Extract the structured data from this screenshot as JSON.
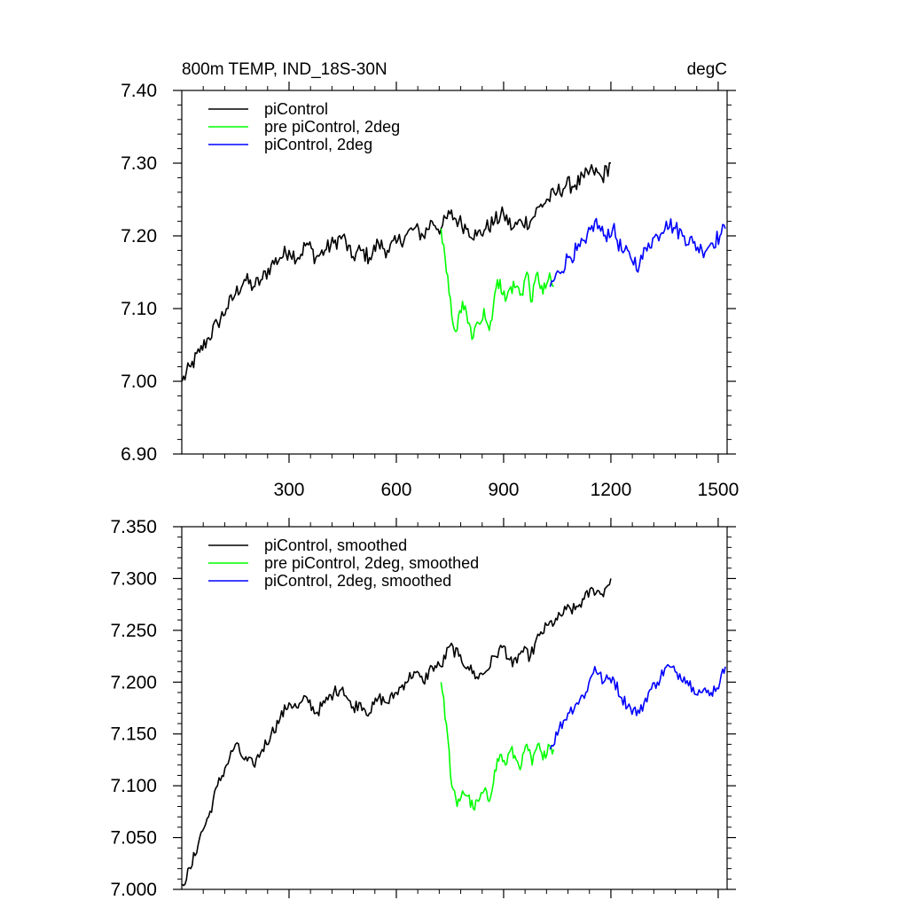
{
  "chart_data": [
    {
      "type": "line",
      "title": "800m TEMP, IND_18S-30N",
      "units": "degC",
      "xlabel": "",
      "ylabel": "",
      "xlim": [
        0,
        1525
      ],
      "ylim": [
        6.9,
        7.4
      ],
      "xticks": [
        300,
        600,
        900,
        1200,
        1500
      ],
      "yticks": [
        6.9,
        7.0,
        7.1,
        7.2,
        7.3,
        7.4
      ],
      "ytick_labels": [
        "6.90",
        "7.00",
        "7.10",
        "7.20",
        "7.30",
        "7.40"
      ],
      "legend_position": "top-left",
      "series": [
        {
          "name": "piControl",
          "color": "#000000",
          "x": [
            1,
            25,
            50,
            75,
            100,
            125,
            150,
            175,
            200,
            225,
            250,
            275,
            300,
            325,
            350,
            375,
            400,
            425,
            450,
            475,
            500,
            525,
            550,
            575,
            600,
            625,
            650,
            675,
            700,
            725,
            750,
            775,
            800,
            825,
            850,
            875,
            900,
            925,
            950,
            975,
            1000,
            1025,
            1050,
            1075,
            1100,
            1125,
            1150,
            1175,
            1200
          ],
          "y": [
            7.0,
            7.02,
            7.04,
            7.06,
            7.08,
            7.1,
            7.12,
            7.14,
            7.13,
            7.14,
            7.16,
            7.17,
            7.18,
            7.17,
            7.19,
            7.17,
            7.18,
            7.19,
            7.2,
            7.17,
            7.18,
            7.17,
            7.19,
            7.18,
            7.19,
            7.2,
            7.21,
            7.2,
            7.22,
            7.21,
            7.23,
            7.22,
            7.21,
            7.2,
            7.21,
            7.22,
            7.23,
            7.21,
            7.22,
            7.22,
            7.24,
            7.25,
            7.26,
            7.27,
            7.27,
            7.28,
            7.29,
            7.28,
            7.3
          ]
        },
        {
          "name": "pre piControl, 2deg",
          "color": "#00ff00",
          "x": [
            725,
            740,
            755,
            770,
            785,
            800,
            815,
            830,
            845,
            860,
            875,
            890,
            905,
            920,
            935,
            950,
            965,
            980,
            995,
            1010,
            1025,
            1040
          ],
          "y": [
            7.21,
            7.15,
            7.09,
            7.07,
            7.11,
            7.08,
            7.06,
            7.08,
            7.1,
            7.07,
            7.12,
            7.14,
            7.11,
            7.13,
            7.13,
            7.12,
            7.15,
            7.11,
            7.15,
            7.12,
            7.14,
            7.13
          ]
        },
        {
          "name": "piControl, 2deg",
          "color": "#0000ff",
          "x": [
            1030,
            1055,
            1080,
            1105,
            1130,
            1155,
            1180,
            1205,
            1230,
            1255,
            1280,
            1305,
            1330,
            1355,
            1380,
            1405,
            1430,
            1455,
            1480,
            1505,
            1520
          ],
          "y": [
            7.13,
            7.15,
            7.17,
            7.18,
            7.19,
            7.22,
            7.2,
            7.21,
            7.18,
            7.17,
            7.16,
            7.19,
            7.2,
            7.22,
            7.21,
            7.2,
            7.19,
            7.18,
            7.19,
            7.2,
            7.21
          ]
        }
      ]
    },
    {
      "type": "line",
      "title": "",
      "xlabel": "",
      "ylabel": "",
      "xlim": [
        0,
        1525
      ],
      "ylim": [
        7.0,
        7.35
      ],
      "xticks": [
        300,
        600,
        900,
        1200,
        1500
      ],
      "yticks": [
        7.0,
        7.05,
        7.1,
        7.15,
        7.2,
        7.25,
        7.3,
        7.35
      ],
      "ytick_labels": [
        "7.000",
        "7.050",
        "7.100",
        "7.150",
        "7.200",
        "7.250",
        "7.300",
        "7.350"
      ],
      "legend_position": "top-left",
      "series": [
        {
          "name": "piControl, smoothed",
          "color": "#000000",
          "x": [
            1,
            25,
            50,
            75,
            100,
            125,
            150,
            175,
            200,
            225,
            250,
            275,
            300,
            325,
            350,
            375,
            400,
            425,
            450,
            475,
            500,
            525,
            550,
            575,
            600,
            625,
            650,
            675,
            700,
            725,
            750,
            775,
            800,
            825,
            850,
            875,
            900,
            925,
            950,
            975,
            1000,
            1025,
            1050,
            1075,
            1100,
            1125,
            1150,
            1175,
            1200
          ],
          "y": [
            7.005,
            7.02,
            7.05,
            7.07,
            7.1,
            7.12,
            7.14,
            7.125,
            7.12,
            7.135,
            7.15,
            7.165,
            7.18,
            7.175,
            7.185,
            7.17,
            7.18,
            7.19,
            7.195,
            7.175,
            7.18,
            7.17,
            7.185,
            7.18,
            7.19,
            7.2,
            7.21,
            7.2,
            7.215,
            7.215,
            7.235,
            7.225,
            7.215,
            7.205,
            7.21,
            7.225,
            7.235,
            7.215,
            7.23,
            7.225,
            7.245,
            7.255,
            7.26,
            7.27,
            7.27,
            7.28,
            7.29,
            7.285,
            7.3
          ]
        },
        {
          "name": "pre piControl, 2deg, smoothed",
          "color": "#00ff00",
          "x": [
            725,
            740,
            755,
            770,
            785,
            800,
            815,
            830,
            845,
            860,
            875,
            890,
            905,
            920,
            935,
            950,
            965,
            980,
            995,
            1010,
            1025,
            1040
          ],
          "y": [
            7.2,
            7.16,
            7.1,
            7.08,
            7.095,
            7.09,
            7.078,
            7.085,
            7.095,
            7.085,
            7.115,
            7.13,
            7.12,
            7.135,
            7.125,
            7.12,
            7.14,
            7.12,
            7.14,
            7.125,
            7.14,
            7.135
          ]
        },
        {
          "name": "piControl, 2deg, smoothed",
          "color": "#0000ff",
          "x": [
            1030,
            1055,
            1080,
            1105,
            1130,
            1155,
            1180,
            1205,
            1230,
            1255,
            1280,
            1305,
            1330,
            1355,
            1380,
            1405,
            1430,
            1455,
            1480,
            1505,
            1520
          ],
          "y": [
            7.135,
            7.155,
            7.17,
            7.18,
            7.19,
            7.215,
            7.2,
            7.205,
            7.185,
            7.175,
            7.17,
            7.19,
            7.2,
            7.215,
            7.21,
            7.205,
            7.195,
            7.19,
            7.19,
            7.2,
            7.215
          ]
        }
      ]
    }
  ]
}
